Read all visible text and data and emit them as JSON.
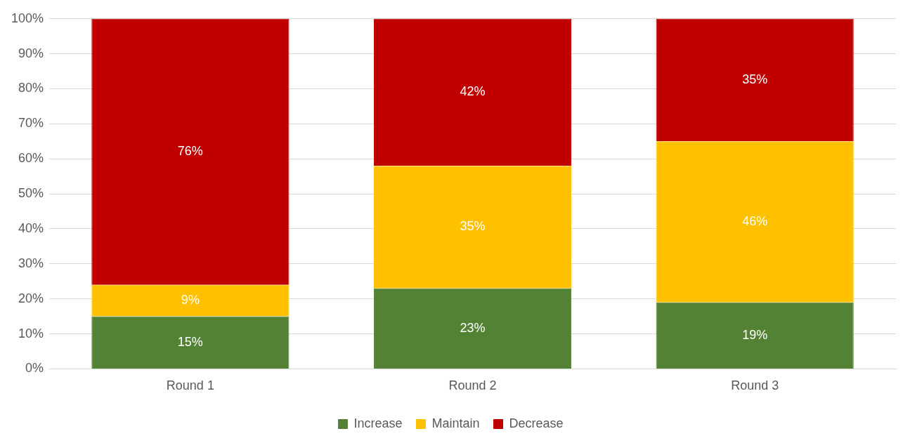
{
  "chart_data": {
    "type": "bar",
    "stacked": true,
    "categories": [
      "Round 1",
      "Round 2",
      "Round 3"
    ],
    "series": [
      {
        "name": "Increase",
        "color": "#548235",
        "values": [
          15,
          23,
          19
        ],
        "value_labels": [
          "15%",
          "23%",
          "19%"
        ]
      },
      {
        "name": "Maintain",
        "color": "#ffc000",
        "values": [
          9,
          35,
          46
        ],
        "value_labels": [
          "9%",
          "35%",
          "46%"
        ]
      },
      {
        "name": "Decrease",
        "color": "#c00000",
        "values": [
          76,
          42,
          35
        ],
        "value_labels": [
          "76%",
          "42%",
          "35%"
        ]
      }
    ],
    "ylim": [
      0,
      100
    ],
    "yticks": [
      {
        "value": 0,
        "label": "0%"
      },
      {
        "value": 10,
        "label": "10%"
      },
      {
        "value": 20,
        "label": "20%"
      },
      {
        "value": 30,
        "label": "30%"
      },
      {
        "value": 40,
        "label": "40%"
      },
      {
        "value": 50,
        "label": "50%"
      },
      {
        "value": 60,
        "label": "60%"
      },
      {
        "value": 70,
        "label": "70%"
      },
      {
        "value": 80,
        "label": "80%"
      },
      {
        "value": 90,
        "label": "90%"
      },
      {
        "value": 100,
        "label": "100%"
      }
    ],
    "grid": "y",
    "legend": "bottom"
  }
}
